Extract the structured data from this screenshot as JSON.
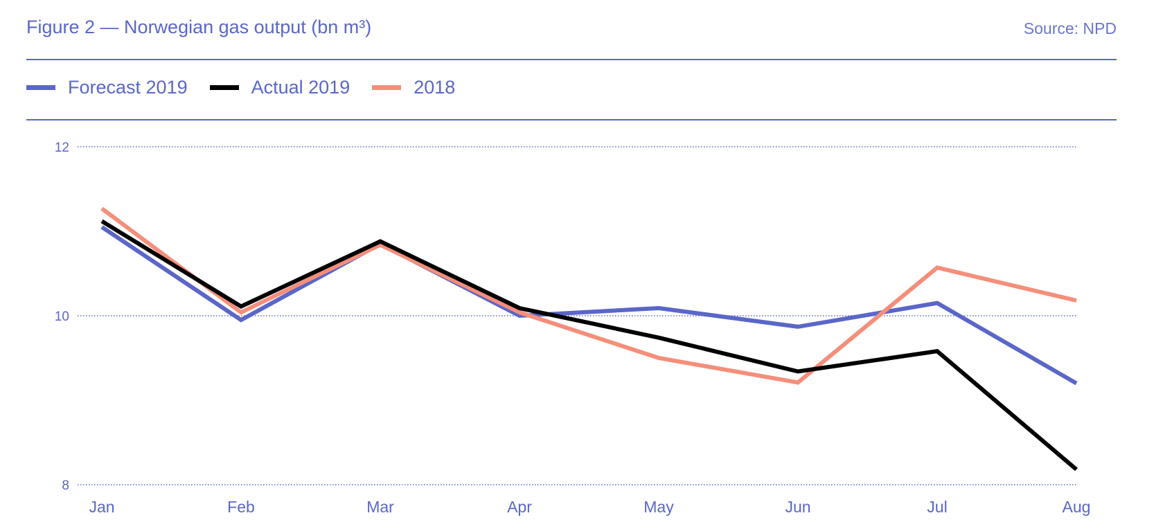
{
  "header": {
    "title": "Figure 2 — Norwegian gas output (bn m³)",
    "source": "Source: NPD"
  },
  "colors": {
    "accent": "#5a66c8",
    "forecast": "#5a66c8",
    "actual": "#000000",
    "prior_year": "#f58e7a"
  },
  "chart_data": {
    "type": "line",
    "title": "Figure 2 — Norwegian gas output (bn m³)",
    "xlabel": "",
    "ylabel": "",
    "categories": [
      "Jan",
      "Feb",
      "Mar",
      "Apr",
      "May",
      "Jun",
      "Jul",
      "Aug"
    ],
    "yticks": [
      8,
      10,
      12
    ],
    "ylim": [
      8,
      12
    ],
    "grid": "horizontal dotted",
    "legend_position": "top-left",
    "series": [
      {
        "name": "Forecast 2019",
        "color": "#5a66c8",
        "values": [
          11.05,
          9.95,
          10.85,
          10.0,
          10.09,
          9.87,
          10.15,
          9.2
        ]
      },
      {
        "name": "Actual 2019",
        "color": "#000000",
        "values": [
          11.12,
          10.11,
          10.88,
          10.09,
          9.74,
          9.34,
          9.58,
          8.18
        ]
      },
      {
        "name": "2018",
        "color": "#f58e7a",
        "values": [
          11.27,
          10.04,
          10.84,
          10.04,
          9.5,
          9.21,
          10.57,
          10.18
        ]
      }
    ]
  }
}
